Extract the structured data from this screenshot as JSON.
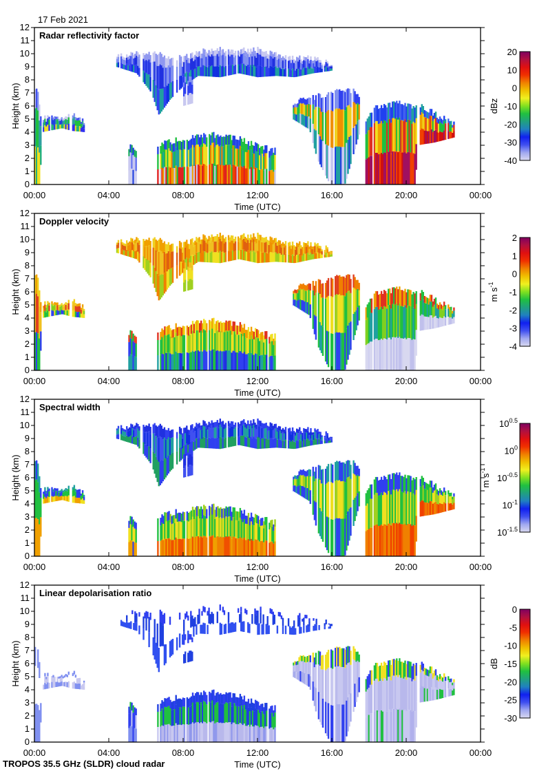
{
  "date_label": "17 Feb 2021",
  "footer": "TROPOS 35.5 GHz (SLDR) cloud radar",
  "chart_data": {
    "type": "heatmap",
    "xlabel": "Time (UTC)",
    "ylabel": "Height (km)",
    "xlim": [
      0,
      24
    ],
    "ylim": [
      0,
      12
    ],
    "xticks": [
      "00:00",
      "04:00",
      "08:00",
      "12:00",
      "16:00",
      "20:00",
      "00:00"
    ],
    "yticks": [
      "0",
      "1",
      "2",
      "3",
      "4",
      "5",
      "6",
      "7",
      "8",
      "9",
      "10",
      "11",
      "12"
    ],
    "clouds": [
      {
        "id": "early",
        "points": [
          [
            0,
            0,
            7.6
          ],
          [
            0.2,
            0,
            7.2
          ],
          [
            0.3,
            0,
            5.2
          ],
          [
            0.4,
            4.0,
            5.1
          ],
          [
            1.5,
            4.3,
            5.0
          ],
          [
            2.0,
            4.1,
            5.3
          ],
          [
            2.7,
            4.0,
            4.8
          ]
        ]
      },
      {
        "id": "cirrus_a",
        "points": [
          [
            4.4,
            9.0,
            9.8
          ],
          [
            5.5,
            8.5,
            10.0
          ],
          [
            6.3,
            7.0,
            10.1
          ],
          [
            6.7,
            5.3,
            10.0
          ],
          [
            7.3,
            6.5,
            9.8
          ],
          [
            8.0,
            7.5,
            9.6
          ],
          [
            8.8,
            8.3,
            10.2
          ],
          [
            10.0,
            8.2,
            10.3
          ],
          [
            11.0,
            8.5,
            10.2
          ],
          [
            12.0,
            8.2,
            10.3
          ],
          [
            13.0,
            8.3,
            10.0
          ],
          [
            14.0,
            8.2,
            9.7
          ],
          [
            15.0,
            8.5,
            9.6
          ],
          [
            16.0,
            8.7,
            9.2
          ]
        ]
      },
      {
        "id": "cirrus_b",
        "points": [
          [
            8.0,
            6.0,
            8.0
          ],
          [
            8.5,
            6.2,
            8.2
          ]
        ]
      },
      {
        "id": "low_a",
        "points": [
          [
            5.05,
            0,
            2.9
          ],
          [
            5.5,
            0,
            2.7
          ]
        ]
      },
      {
        "id": "low_b",
        "points": [
          [
            6.6,
            0,
            3.1
          ],
          [
            8.0,
            0,
            3.5
          ],
          [
            9.5,
            0,
            3.8
          ],
          [
            11.0,
            0,
            3.5
          ],
          [
            12.0,
            0,
            3.0
          ],
          [
            13.0,
            0,
            2.6
          ]
        ]
      },
      {
        "id": "mid_c",
        "points": [
          [
            13.9,
            5.0,
            6.3
          ],
          [
            14.8,
            4.2,
            6.5
          ],
          [
            15.2,
            2.0,
            6.8
          ],
          [
            15.9,
            0,
            7.0
          ],
          [
            16.7,
            0,
            7.3
          ],
          [
            17.2,
            2.5,
            7.1
          ],
          [
            17.5,
            4.0,
            6.5
          ]
        ]
      },
      {
        "id": "front_d",
        "points": [
          [
            17.8,
            0,
            5.0
          ],
          [
            18.4,
            0,
            5.9
          ],
          [
            19.5,
            0,
            6.2
          ],
          [
            20.5,
            0,
            6.0
          ],
          [
            20.6,
            3.0,
            6.2
          ],
          [
            21.5,
            3.2,
            5.4
          ],
          [
            22.6,
            3.6,
            4.6
          ]
        ]
      }
    ],
    "panels": [
      {
        "title": "Radar reflectivity factor",
        "unit": "dBz",
        "unit_sup": "",
        "cbar_ticks": [
          "20",
          "10",
          "0",
          "-10",
          "-20",
          "-30",
          "-40"
        ],
        "cbar_sup": null,
        "colors": {
          "early": {
            "top": [
              "#4050f0",
              "#8090f0",
              "#c8c8f0"
            ],
            "mid": [
              "#30a0a0",
              "#20c040",
              "#2040e0"
            ],
            "base": [
              "#f0e020",
              "#20b080",
              "#3030f0"
            ]
          },
          "cirrus_a": {
            "top": [
              "#c8c8f0",
              "#9098f0"
            ],
            "mid": [
              "#4050f0",
              "#2030e0",
              "#8090f0"
            ],
            "base": [
              "#1030e0",
              "#20a0a0",
              "#3040f0"
            ]
          },
          "cirrus_b": {
            "top": [
              "#8090f0"
            ],
            "mid": [
              "#3040f0"
            ],
            "base": [
              "#c8c8f0"
            ]
          },
          "low_a": {
            "top": [
              "#2040e0",
              "#20b060"
            ],
            "mid": [
              "#c8c8f0",
              "#6070f0"
            ],
            "base": [
              "#d0d0f0",
              "#2040e0"
            ]
          },
          "low_b": {
            "top": [
              "#2040e0",
              "#20c040",
              "#3050f0"
            ],
            "mid": [
              "#20c040",
              "#f0e020",
              "#20a0a0",
              "#f08000"
            ],
            "base": [
              "#f04000",
              "#f0a000",
              "#e02020",
              "#20c040",
              "#c8c8f0"
            ]
          },
          "mid_c": {
            "top": [
              "#3040f0",
              "#8090f0"
            ],
            "mid": [
              "#20c040",
              "#f0d020",
              "#f09000"
            ],
            "base": [
              "#20a0a0",
              "#2040e0",
              "#c8c8f0"
            ]
          },
          "front_d": {
            "top": [
              "#2040f0",
              "#4060f0",
              "#20a0a0"
            ],
            "mid": [
              "#f0a000",
              "#e03020",
              "#f0e020",
              "#20c040"
            ],
            "base": [
              "#d01010",
              "#f04000",
              "#a01060"
            ]
          }
        }
      },
      {
        "title": "Doppler velocity",
        "unit": "m s",
        "unit_sup": "-1",
        "cbar_ticks": [
          "2",
          "1",
          "0",
          "-1",
          "-2",
          "-3",
          "-4"
        ],
        "cbar_sup": null,
        "colors": {
          "early": {
            "top": [
              "#f0a000",
              "#f0d020"
            ],
            "mid": [
              "#f0c020",
              "#e04020",
              "#80d020"
            ],
            "base": [
              "#20c040",
              "#3040f0",
              "#f0e020"
            ]
          },
          "cirrus_a": {
            "top": [
              "#f0d020",
              "#f0a000"
            ],
            "mid": [
              "#f09000",
              "#f0c020",
              "#e06010"
            ],
            "base": [
              "#f0e020",
              "#a0d020",
              "#f08000"
            ]
          },
          "cirrus_b": {
            "top": [
              "#f0c020"
            ],
            "mid": [
              "#f0e020"
            ],
            "base": [
              "#a0d020"
            ]
          },
          "low_a": {
            "top": [
              "#20c040",
              "#f04020"
            ],
            "mid": [
              "#3040f0",
              "#20c040"
            ],
            "base": [
              "#20a0a0",
              "#3040f0"
            ]
          },
          "low_b": {
            "top": [
              "#e03020",
              "#f0a000",
              "#f0e020"
            ],
            "mid": [
              "#20c040",
              "#a0d020",
              "#f0e020"
            ],
            "base": [
              "#3040f0",
              "#20a0a0",
              "#2030e0",
              "#20c040"
            ]
          },
          "mid_c": {
            "top": [
              "#f08000",
              "#e04020"
            ],
            "mid": [
              "#20c040",
              "#a0d020",
              "#f0e020"
            ],
            "base": [
              "#3040f0",
              "#20a0a0",
              "#20c040"
            ]
          },
          "front_d": {
            "top": [
              "#e03020",
              "#f0a000",
              "#20c040"
            ],
            "mid": [
              "#20c040",
              "#20a0a0",
              "#80d020"
            ],
            "base": [
              "#d0d0f0",
              "#c0c0ec",
              "#d8d8f0"
            ]
          }
        }
      },
      {
        "title": "Spectral width",
        "unit": "m s",
        "unit_sup": "-1",
        "cbar_ticks": [
          "10",
          "10",
          "10",
          "10",
          "10"
        ],
        "cbar_sup": [
          "0.5",
          "0",
          "-0.5",
          "-1",
          "-1.5"
        ],
        "colors": {
          "early": {
            "top": [
              "#3040f0",
              "#20a0a0"
            ],
            "mid": [
              "#20c040",
              "#3040f0"
            ],
            "base": [
              "#f0a000",
              "#f0e020"
            ]
          },
          "cirrus_a": {
            "top": [
              "#3040f0",
              "#2030e0"
            ],
            "mid": [
              "#1030e0",
              "#4050f0",
              "#20a0a0"
            ],
            "base": [
              "#3040f0",
              "#20a060"
            ]
          },
          "cirrus_b": {
            "top": [
              "#3040f0"
            ],
            "mid": [
              "#2030e0"
            ],
            "base": [
              "#4050f0"
            ]
          },
          "low_a": {
            "top": [
              "#20c040",
              "#3040f0"
            ],
            "mid": [
              "#f0e020",
              "#20c040"
            ],
            "base": [
              "#f0a000",
              "#3040f0"
            ]
          },
          "low_b": {
            "top": [
              "#20c040",
              "#3040f0",
              "#a0d020"
            ],
            "mid": [
              "#20c040",
              "#f0e020",
              "#a0d020"
            ],
            "base": [
              "#f08000",
              "#f05000",
              "#f0a000"
            ]
          },
          "mid_c": {
            "top": [
              "#3040f0",
              "#20a0a0"
            ],
            "mid": [
              "#20c040",
              "#a0d020",
              "#f0e020"
            ],
            "base": [
              "#3040f0",
              "#20a0a0",
              "#20c040"
            ]
          },
          "front_d": {
            "top": [
              "#3040f0",
              "#20c040"
            ],
            "mid": [
              "#20c040",
              "#a0d020",
              "#f0e020"
            ],
            "base": [
              "#f06000",
              "#f04000",
              "#f08000"
            ]
          }
        }
      },
      {
        "title": "Linear depolarisation ratio",
        "unit": "dB",
        "unit_sup": "",
        "cbar_ticks": [
          "0",
          "-5",
          "-10",
          "-15",
          "-20",
          "-25",
          "-30"
        ],
        "cbar_sup": null,
        "colors": {
          "early": {
            "top": [
              "#ffffff",
              "#8090f0"
            ],
            "mid": [
              "#ffffff",
              "#c8c8f0"
            ],
            "base": [
              "#8090f0",
              "#c8c8f0"
            ]
          },
          "cirrus_a": {
            "top": [
              "#ffffff",
              "#ffffff",
              "#3040f0"
            ],
            "mid": [
              "#ffffff",
              "#2040e0",
              "#ffffff"
            ],
            "base": [
              "#ffffff",
              "#3050f0"
            ]
          },
          "cirrus_b": {
            "top": [
              "#3040f0"
            ],
            "mid": [
              "#ffffff"
            ],
            "base": [
              "#2040e0"
            ]
          },
          "low_a": {
            "top": [
              "#20c040",
              "#3040f0"
            ],
            "mid": [
              "#3040f0",
              "#c8c8f0"
            ],
            "base": [
              "#8090f0",
              "#3040f0"
            ]
          },
          "low_b": {
            "top": [
              "#2040e0",
              "#3040f0"
            ],
            "mid": [
              "#20c040",
              "#2040e0"
            ],
            "base": [
              "#b8b8ec",
              "#c8c8f0",
              "#9098ec"
            ]
          },
          "mid_c": {
            "top": [
              "#20c040",
              "#f0e020",
              "#3040f0"
            ],
            "mid": [
              "#b8b8ec",
              "#c8c8f0"
            ],
            "base": [
              "#a8acec",
              "#c8c8f0",
              "#3040f0"
            ]
          },
          "front_d": {
            "top": [
              "#f0e020",
              "#20c040",
              "#3040f0"
            ],
            "mid": [
              "#b8b8ec",
              "#c8c8f0"
            ],
            "base": [
              "#20c040",
              "#b0b0ec",
              "#c8c8f0"
            ]
          }
        }
      }
    ],
    "colormap": [
      "#d8d8f0",
      "#a0a8f0",
      "#4050f0",
      "#1020f0",
      "#2080c0",
      "#20a080",
      "#20c040",
      "#80e020",
      "#f0f020",
      "#f0c000",
      "#f08000",
      "#f03000",
      "#e01010",
      "#b01040",
      "#800060"
    ]
  }
}
